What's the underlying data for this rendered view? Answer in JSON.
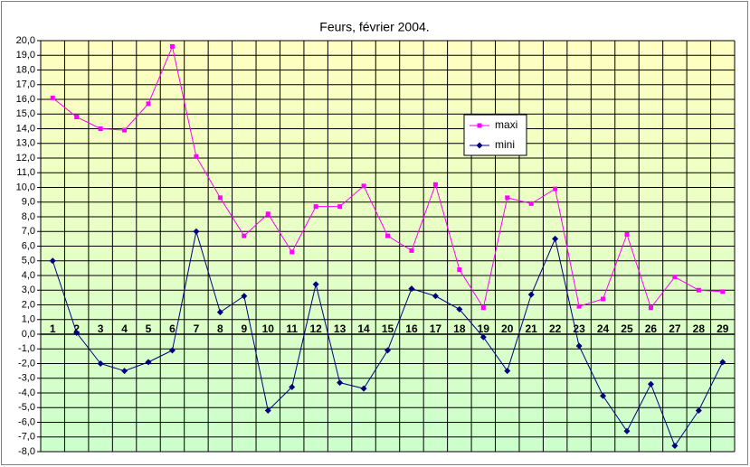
{
  "chart_data": {
    "type": "line",
    "title": "Feurs, février 2004.",
    "categories": [
      "1",
      "2",
      "3",
      "4",
      "5",
      "6",
      "7",
      "8",
      "9",
      "10",
      "11",
      "12",
      "13",
      "14",
      "15",
      "16",
      "17",
      "18",
      "19",
      "20",
      "21",
      "22",
      "23",
      "24",
      "25",
      "26",
      "27",
      "28",
      "29"
    ],
    "series": [
      {
        "name": "maxi",
        "color": "#ff00ff",
        "marker": "square",
        "values": [
          16.1,
          14.8,
          14.0,
          13.9,
          15.7,
          19.6,
          12.1,
          9.3,
          6.7,
          8.2,
          5.6,
          8.7,
          8.7,
          10.1,
          6.7,
          5.7,
          10.2,
          4.4,
          1.8,
          9.3,
          8.9,
          9.9,
          1.9,
          2.4,
          6.8,
          1.8,
          3.9,
          3.0,
          2.9
        ]
      },
      {
        "name": "mini",
        "color": "#000080",
        "marker": "diamond",
        "values": [
          5.0,
          0.1,
          -2.0,
          -2.5,
          -1.9,
          -1.1,
          7.0,
          1.5,
          2.6,
          -5.2,
          -3.6,
          3.4,
          -3.3,
          -3.7,
          -1.1,
          3.1,
          2.6,
          1.7,
          -0.2,
          -2.5,
          2.7,
          6.5,
          -0.8,
          -4.2,
          -6.6,
          -3.4,
          -7.6,
          -5.2,
          -1.9
        ]
      }
    ],
    "ylim": [
      -8,
      20
    ],
    "yticks": [
      {
        "value": -8,
        "label": "-8,0"
      },
      {
        "value": -7,
        "label": "-7,0"
      },
      {
        "value": -6,
        "label": "-6,0"
      },
      {
        "value": -5,
        "label": "-5,0"
      },
      {
        "value": -4,
        "label": "-4,0"
      },
      {
        "value": -3,
        "label": "-3,0"
      },
      {
        "value": -2,
        "label": "-2,0"
      },
      {
        "value": -1,
        "label": "-1,0"
      },
      {
        "value": 0,
        "label": "0,0"
      },
      {
        "value": 1,
        "label": "1,0"
      },
      {
        "value": 2,
        "label": "2,0"
      },
      {
        "value": 3,
        "label": "3,0"
      },
      {
        "value": 4,
        "label": "4,0"
      },
      {
        "value": 5,
        "label": "5,0"
      },
      {
        "value": 6,
        "label": "6,0"
      },
      {
        "value": 7,
        "label": "7,0"
      },
      {
        "value": 8,
        "label": "8,0"
      },
      {
        "value": 9,
        "label": "9,0"
      },
      {
        "value": 10,
        "label": "10,0"
      },
      {
        "value": 11,
        "label": "11,0"
      },
      {
        "value": 12,
        "label": "12,0"
      },
      {
        "value": 13,
        "label": "13,0"
      },
      {
        "value": 14,
        "label": "14,0"
      },
      {
        "value": 15,
        "label": "15,0"
      },
      {
        "value": 16,
        "label": "16,0"
      },
      {
        "value": 17,
        "label": "17,0"
      },
      {
        "value": 18,
        "label": "18,0"
      },
      {
        "value": 19,
        "label": "19,0"
      },
      {
        "value": 20,
        "label": "20,0"
      }
    ],
    "grid": true
  }
}
